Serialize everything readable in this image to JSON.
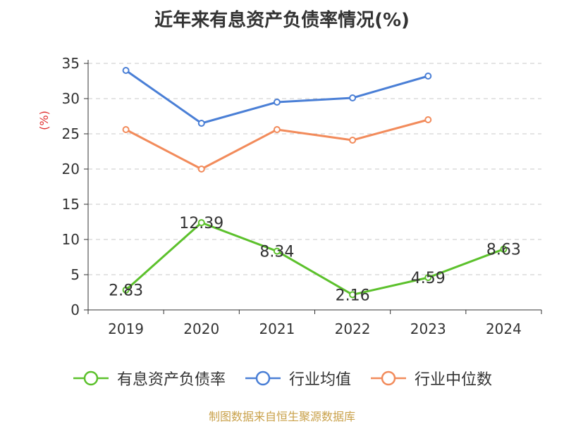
{
  "title": "近年来有息资产负债率情况(%)",
  "source_note": "制图数据来自恒生聚源数据库",
  "chart_data": {
    "type": "line",
    "title": "近年来有息资产负债率情况(%)",
    "ylabel": "(%)",
    "xlabel": "",
    "categories": [
      "2019",
      "2020",
      "2021",
      "2022",
      "2023",
      "2024"
    ],
    "ylim": [
      0,
      35
    ],
    "yticks": [
      0,
      5,
      10,
      15,
      20,
      25,
      30,
      35
    ],
    "grid": "horizontal dashed",
    "legend_position": "bottom",
    "series": [
      {
        "name": "有息资产负债率",
        "color": "#5cc12c",
        "values": [
          2.83,
          12.39,
          8.34,
          2.16,
          4.59,
          8.63
        ],
        "labels": [
          "2.83",
          "12.39",
          "8.34",
          "2.16",
          "4.59",
          "8.63"
        ]
      },
      {
        "name": "行业均值",
        "color": "#4a7fd6",
        "values": [
          34.0,
          26.5,
          29.5,
          30.1,
          33.2,
          null
        ]
      },
      {
        "name": "行业中位数",
        "color": "#f28b5b",
        "values": [
          25.6,
          20.0,
          25.6,
          24.1,
          27.0,
          null
        ]
      }
    ]
  }
}
